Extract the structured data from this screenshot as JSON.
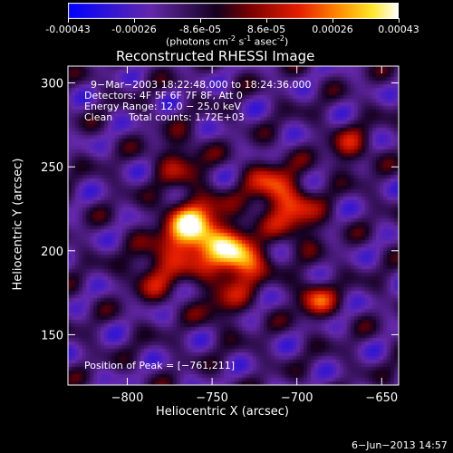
{
  "colorbar": {
    "tick_labels": [
      "-0.00043",
      "-0.00026",
      "-8.6e-05",
      "8.6e-05",
      "0.00026",
      "0.00043"
    ],
    "unit_label": "(photons cm",
    "unit_exp1": "-2",
    "unit_mid": " s",
    "unit_exp2": "-1",
    "unit_mid2": " asec",
    "unit_exp3": "-2",
    "unit_end": ")",
    "range": [
      -0.00043,
      0.00043
    ]
  },
  "chart_data": {
    "type": "heatmap",
    "title": "Reconstructed RHESSI Image",
    "xlabel": "Heliocentric X (arcsec)",
    "ylabel": "Heliocentric Y (arcsec)",
    "xlim": [
      -835,
      -640
    ],
    "ylim": [
      120,
      310
    ],
    "x_ticks": [
      -800,
      -750,
      -700,
      -650
    ],
    "y_ticks": [
      150,
      200,
      250,
      300
    ],
    "x_tick_labels": [
      "−800",
      "−750",
      "−700",
      "−650"
    ],
    "y_tick_labels": [
      "150",
      "200",
      "250",
      "300"
    ],
    "peak": [
      -761,
      211
    ],
    "sources": [
      {
        "x": -761,
        "y": 212,
        "amp": 1.0,
        "sigma": 13
      },
      {
        "x": -735,
        "y": 196,
        "amp": 0.85,
        "sigma": 10
      },
      {
        "x": -715,
        "y": 238,
        "amp": 0.55,
        "sigma": 11
      },
      {
        "x": -700,
        "y": 220,
        "amp": 0.45,
        "sigma": 10
      },
      {
        "x": -690,
        "y": 172,
        "amp": 0.5,
        "sigma": 8
      },
      {
        "x": -785,
        "y": 188,
        "amp": 0.4,
        "sigma": 10
      },
      {
        "x": -770,
        "y": 255,
        "amp": 0.35,
        "sigma": 10
      },
      {
        "x": -670,
        "y": 262,
        "amp": 0.35,
        "sigma": 9
      },
      {
        "x": -745,
        "y": 170,
        "amp": 0.3,
        "sigma": 10
      }
    ]
  },
  "annotations": {
    "time_range": "9−Mar−2003 18:22:48.000 to 18:24:36.000",
    "detectors": "Detectors: 4F 5F 6F 7F 8F, Att 0",
    "energy": "Energy Range: 12.0 − 25.0 keV",
    "clean_label": "Clean",
    "total_counts": "Total counts: 1.72E+03",
    "peak_position": "Position of Peak = [−761,211]"
  },
  "footer_date": "6−Jun−2013 14:57"
}
